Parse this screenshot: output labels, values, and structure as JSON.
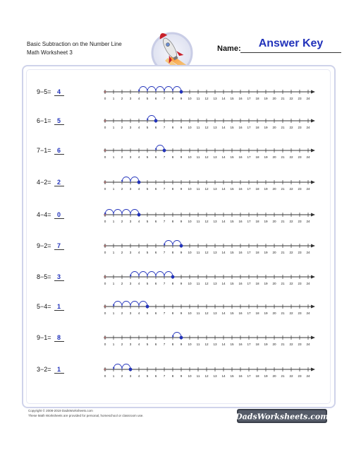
{
  "header": {
    "title_line1": "Basic Subtraction on the Number Line",
    "title_line2": "Math Worksheet 3",
    "name_label": "Name:",
    "answer_key": "Answer Key"
  },
  "number_line": {
    "min": 0,
    "max": 24,
    "tick_labels": [
      "0",
      "1",
      "2",
      "3",
      "4",
      "5",
      "6",
      "7",
      "8",
      "9",
      "10",
      "11",
      "12",
      "13",
      "14",
      "15",
      "16",
      "17",
      "18",
      "19",
      "20",
      "21",
      "22",
      "23",
      "24"
    ]
  },
  "problems": [
    {
      "equation": "9−5=",
      "answer": "4",
      "start": 9,
      "jumps": 5
    },
    {
      "equation": "6−1=",
      "answer": "5",
      "start": 6,
      "jumps": 1
    },
    {
      "equation": "7−1=",
      "answer": "6",
      "start": 7,
      "jumps": 1
    },
    {
      "equation": "4−2=",
      "answer": "2",
      "start": 4,
      "jumps": 2
    },
    {
      "equation": "4−4=",
      "answer": "0",
      "start": 4,
      "jumps": 4
    },
    {
      "equation": "9−2=",
      "answer": "7",
      "start": 9,
      "jumps": 2
    },
    {
      "equation": "8−5=",
      "answer": "3",
      "start": 8,
      "jumps": 5
    },
    {
      "equation": "5−4=",
      "answer": "1",
      "start": 5,
      "jumps": 4
    },
    {
      "equation": "9−1=",
      "answer": "8",
      "start": 9,
      "jumps": 1
    },
    {
      "equation": "3−2=",
      "answer": "1",
      "start": 3,
      "jumps": 2
    }
  ],
  "footer": {
    "copyright": "Copyright © 2008-2019 DadsWorksheets.com",
    "usage": "These Math Worksheets are provided for personal, homeschool or classroom use.",
    "logo_text": "DadsWorksheets.com"
  },
  "colors": {
    "accent": "#2233bb",
    "frame": "#cfd3ea",
    "line": "#333333"
  }
}
